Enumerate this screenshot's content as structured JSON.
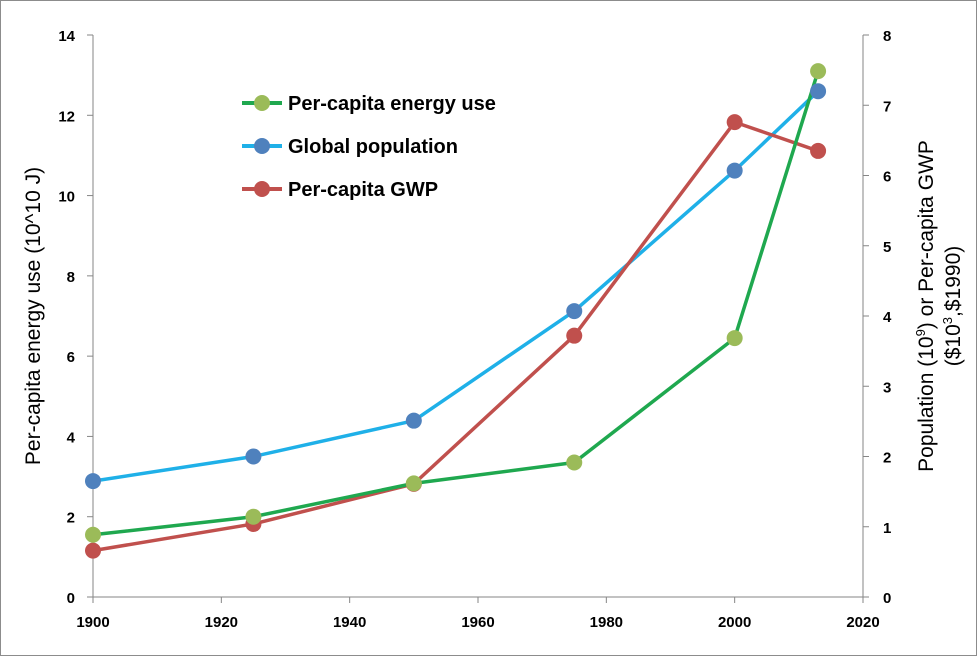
{
  "chart_data": {
    "type": "line",
    "x": [
      1900,
      1925,
      1950,
      1975,
      2000,
      2013
    ],
    "xlim": [
      1900,
      2020
    ],
    "x_ticks": [
      "1900",
      "1920",
      "1940",
      "1960",
      "1980",
      "2000",
      "2020"
    ],
    "ylim_left": [
      0,
      14
    ],
    "y_left_ticks": [
      "0",
      "2",
      "4",
      "6",
      "8",
      "10",
      "12",
      "14"
    ],
    "ylim_right": [
      0,
      8
    ],
    "y_right_ticks": [
      "0",
      "1",
      "2",
      "3",
      "4",
      "5",
      "6",
      "7",
      "8"
    ],
    "ylabel_left": "Per-capita energy use (10^10 J)",
    "ylabel_right": {
      "line1_a": "Population (10",
      "line1_sup1": "9",
      "line1_b": ") or Per-capita GWP",
      "line2_a": "($10",
      "line2_sup": "3",
      "line2_b": ",$1990)"
    },
    "grid": false,
    "legend_position": "top-left",
    "series": [
      {
        "name": "Per-capita energy use",
        "axis": "left",
        "line_color": "#1fa84f",
        "marker_color": "#9bbb59",
        "values": [
          1.55,
          2.0,
          2.83,
          3.35,
          6.45,
          13.1
        ]
      },
      {
        "name": "Global population",
        "axis": "right",
        "line_color": "#1fb0e8",
        "marker_color": "#4f81bd",
        "values": [
          1.65,
          2.0,
          2.51,
          4.07,
          6.07,
          7.2
        ]
      },
      {
        "name": "Per-capita GWP",
        "axis": "right",
        "line_color": "#c0504d",
        "marker_color": "#c0504d",
        "values": [
          0.66,
          1.04,
          1.61,
          3.72,
          6.76,
          6.35
        ]
      }
    ]
  }
}
